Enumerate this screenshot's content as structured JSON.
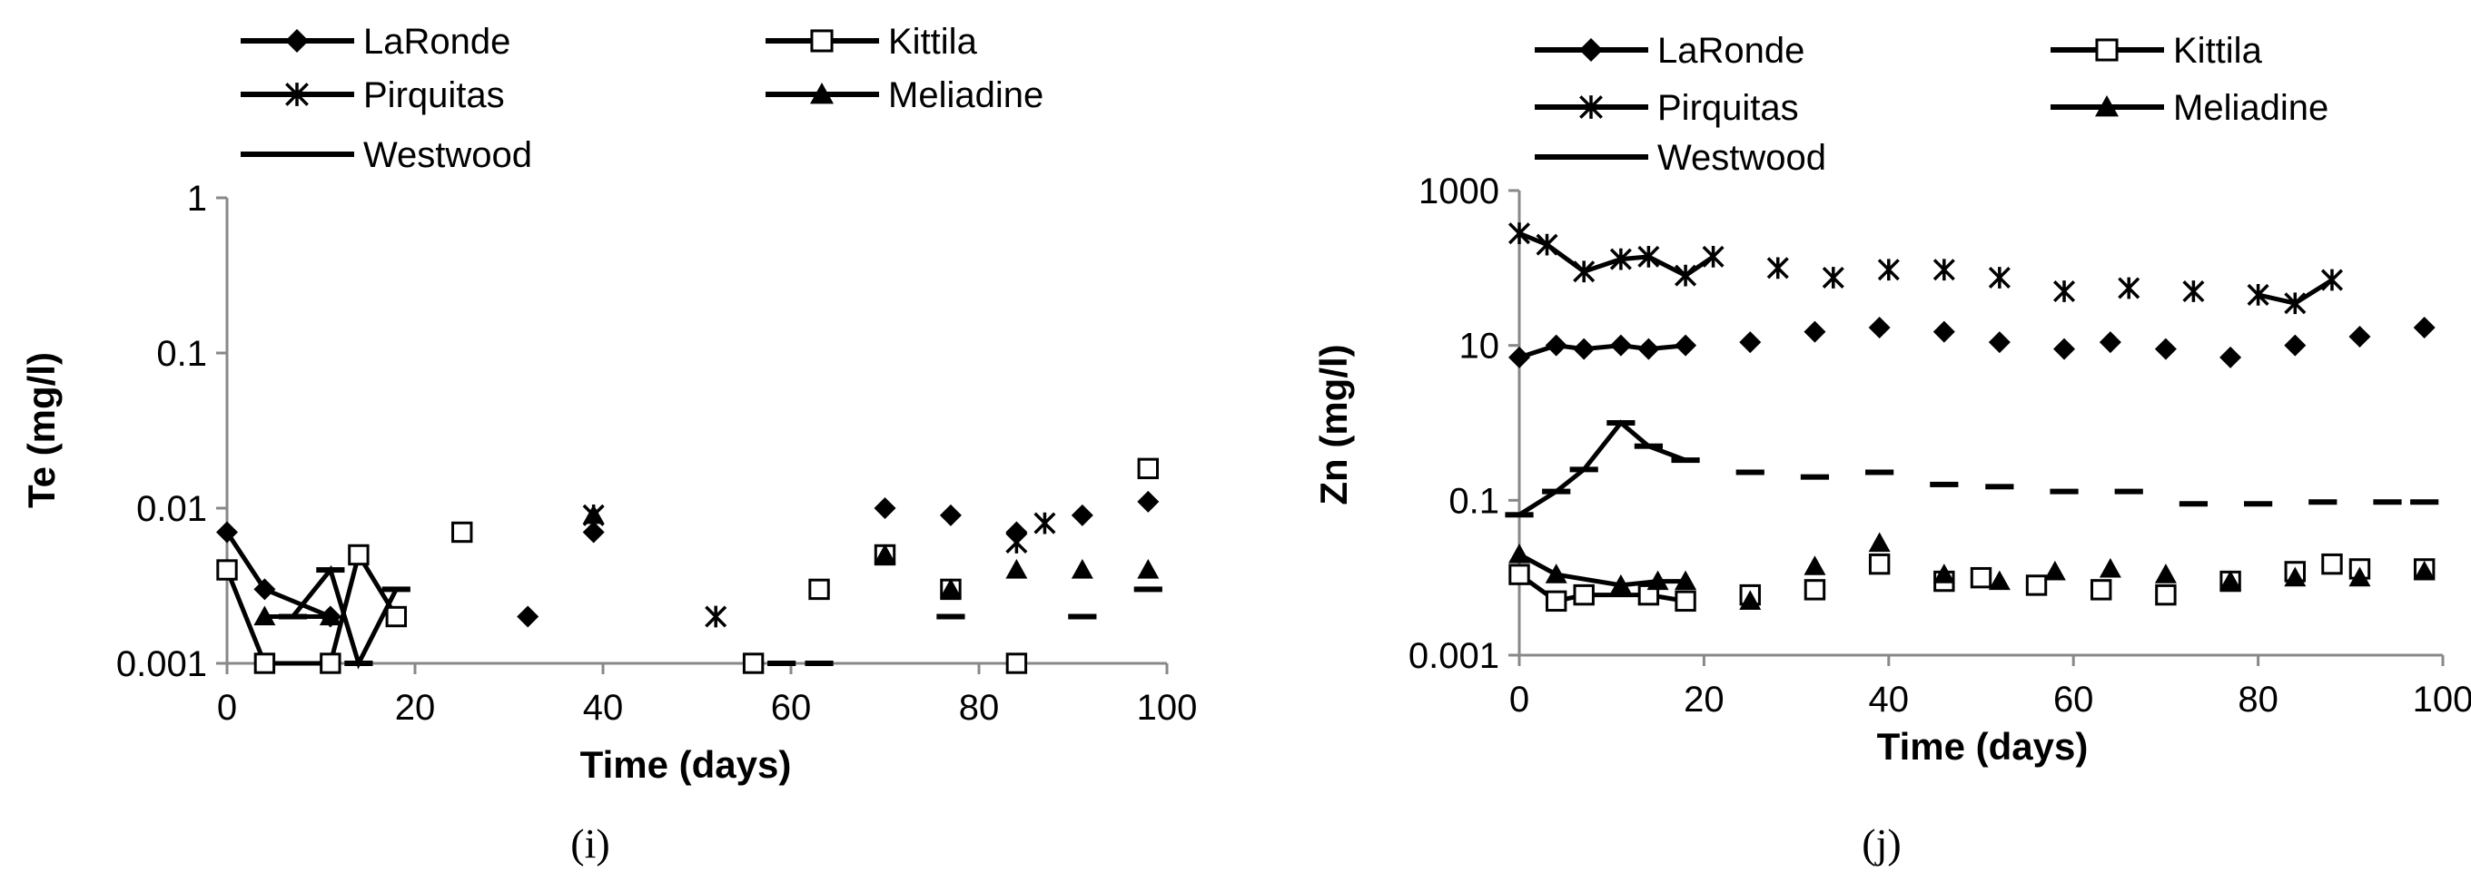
{
  "chart_data": [
    {
      "type": "line",
      "panel_label": "(i)",
      "xlabel": "Time (days)",
      "ylabel": "Te (mg/l)",
      "xlim": [
        0,
        100
      ],
      "ylim": [
        0.001,
        1
      ],
      "yscale": "log",
      "grid": false,
      "legend_position": "top",
      "x_ticks": [
        "0",
        "20",
        "40",
        "60",
        "80",
        "100"
      ],
      "y_ticks": [
        "1",
        "0.1",
        "0.01",
        "0.001"
      ],
      "series": [
        {
          "name": "LaRonde",
          "marker": "diamond",
          "points": [
            [
              0,
              0.007
            ],
            [
              4,
              0.003
            ],
            [
              11,
              0.002
            ],
            [
              32,
              0.002
            ],
            [
              39,
              0.007
            ],
            [
              70,
              0.01
            ],
            [
              77,
              0.009
            ],
            [
              84,
              0.007
            ],
            [
              91,
              0.009
            ],
            [
              98,
              0.011
            ]
          ]
        },
        {
          "name": "Kittila",
          "marker": "square-open",
          "points": [
            [
              0,
              0.004
            ],
            [
              4,
              0.001
            ],
            [
              11,
              0.001
            ],
            [
              14,
              0.005
            ],
            [
              18,
              0.002
            ],
            [
              25,
              0.007
            ],
            [
              56,
              0.001
            ],
            [
              63,
              0.003
            ],
            [
              70,
              0.005
            ],
            [
              77,
              0.003
            ],
            [
              84,
              0.001
            ],
            [
              98,
              0.018
            ]
          ]
        },
        {
          "name": "Pirquitas",
          "marker": "asterisk",
          "points": [
            [
              39,
              0.009
            ],
            [
              52,
              0.002
            ],
            [
              84,
              0.006
            ],
            [
              87,
              0.008
            ]
          ]
        },
        {
          "name": "Meliadine",
          "marker": "triangle",
          "points": [
            [
              4,
              0.002
            ],
            [
              11,
              0.002
            ],
            [
              39,
              0.009
            ],
            [
              70,
              0.005
            ],
            [
              77,
              0.003
            ],
            [
              84,
              0.004
            ],
            [
              91,
              0.004
            ],
            [
              98,
              0.004
            ]
          ]
        },
        {
          "name": "Westwood",
          "marker": "dash",
          "points": [
            [
              7,
              0.002
            ],
            [
              11,
              0.004
            ],
            [
              14,
              0.001
            ],
            [
              18,
              0.003
            ],
            [
              59,
              0.001
            ],
            [
              63,
              0.001
            ],
            [
              77,
              0.002
            ],
            [
              91,
              0.002
            ],
            [
              98,
              0.003
            ]
          ]
        }
      ]
    },
    {
      "type": "line",
      "panel_label": "(j)",
      "xlabel": "Time (days)",
      "ylabel": "Zn (mg/l)",
      "xlim": [
        0,
        100
      ],
      "ylim": [
        0.001,
        1000
      ],
      "yscale": "log",
      "grid": false,
      "legend_position": "top",
      "x_ticks": [
        "0",
        "20",
        "40",
        "60",
        "80",
        "100"
      ],
      "y_ticks": [
        "1000",
        "10",
        "0.1",
        "0.001"
      ],
      "series": [
        {
          "name": "LaRonde",
          "marker": "diamond",
          "points": [
            [
              0,
              7
            ],
            [
              4,
              10
            ],
            [
              7,
              9
            ],
            [
              11,
              10
            ],
            [
              14,
              9
            ],
            [
              18,
              10
            ],
            [
              25,
              11
            ],
            [
              32,
              15
            ],
            [
              39,
              17
            ],
            [
              46,
              15
            ],
            [
              52,
              11
            ],
            [
              59,
              9
            ],
            [
              64,
              11
            ],
            [
              70,
              9
            ],
            [
              77,
              7
            ],
            [
              84,
              10
            ],
            [
              91,
              13
            ],
            [
              98,
              17
            ]
          ]
        },
        {
          "name": "Kittila",
          "marker": "square-open",
          "points": [
            [
              0,
              0.011
            ],
            [
              4,
              0.005
            ],
            [
              7,
              0.006
            ],
            [
              14,
              0.006
            ],
            [
              18,
              0.005
            ],
            [
              25,
              0.006
            ],
            [
              32,
              0.007
            ],
            [
              39,
              0.015
            ],
            [
              46,
              0.009
            ],
            [
              50,
              0.01
            ],
            [
              56,
              0.008
            ],
            [
              63,
              0.007
            ],
            [
              70,
              0.006
            ],
            [
              77,
              0.009
            ],
            [
              84,
              0.012
            ],
            [
              88,
              0.015
            ],
            [
              91,
              0.013
            ],
            [
              98,
              0.013
            ]
          ]
        },
        {
          "name": "Pirquitas",
          "marker": "asterisk",
          "points": [
            [
              0,
              280
            ],
            [
              3,
              200
            ],
            [
              7,
              90
            ],
            [
              11,
              130
            ],
            [
              14,
              140
            ],
            [
              18,
              80
            ],
            [
              21,
              140
            ],
            [
              28,
              100
            ],
            [
              34,
              75
            ],
            [
              40,
              95
            ],
            [
              46,
              95
            ],
            [
              52,
              75
            ],
            [
              59,
              50
            ],
            [
              66,
              55
            ],
            [
              73,
              50
            ],
            [
              80,
              45
            ],
            [
              84,
              35
            ],
            [
              88,
              70
            ]
          ]
        },
        {
          "name": "Meliadine",
          "marker": "triangle",
          "points": [
            [
              0,
              0.02
            ],
            [
              4,
              0.011
            ],
            [
              11,
              0.008
            ],
            [
              15,
              0.009
            ],
            [
              18,
              0.009
            ],
            [
              25,
              0.005
            ],
            [
              32,
              0.014
            ],
            [
              39,
              0.028
            ],
            [
              46,
              0.011
            ],
            [
              52,
              0.009
            ],
            [
              58,
              0.012
            ],
            [
              64,
              0.013
            ],
            [
              70,
              0.011
            ],
            [
              77,
              0.009
            ],
            [
              84,
              0.01
            ],
            [
              91,
              0.01
            ],
            [
              98,
              0.012
            ]
          ]
        },
        {
          "name": "Westwood",
          "marker": "dash",
          "points": [
            [
              0,
              0.065
            ],
            [
              4,
              0.13
            ],
            [
              7,
              0.25
            ],
            [
              11,
              1.0
            ],
            [
              14,
              0.5
            ],
            [
              18,
              0.33
            ],
            [
              25,
              0.23
            ],
            [
              32,
              0.2
            ],
            [
              39,
              0.23
            ],
            [
              46,
              0.16
            ],
            [
              52,
              0.15
            ],
            [
              59,
              0.13
            ],
            [
              66,
              0.13
            ],
            [
              73,
              0.09
            ],
            [
              80,
              0.09
            ],
            [
              87,
              0.095
            ],
            [
              94,
              0.095
            ],
            [
              98,
              0.095
            ]
          ]
        }
      ]
    }
  ]
}
